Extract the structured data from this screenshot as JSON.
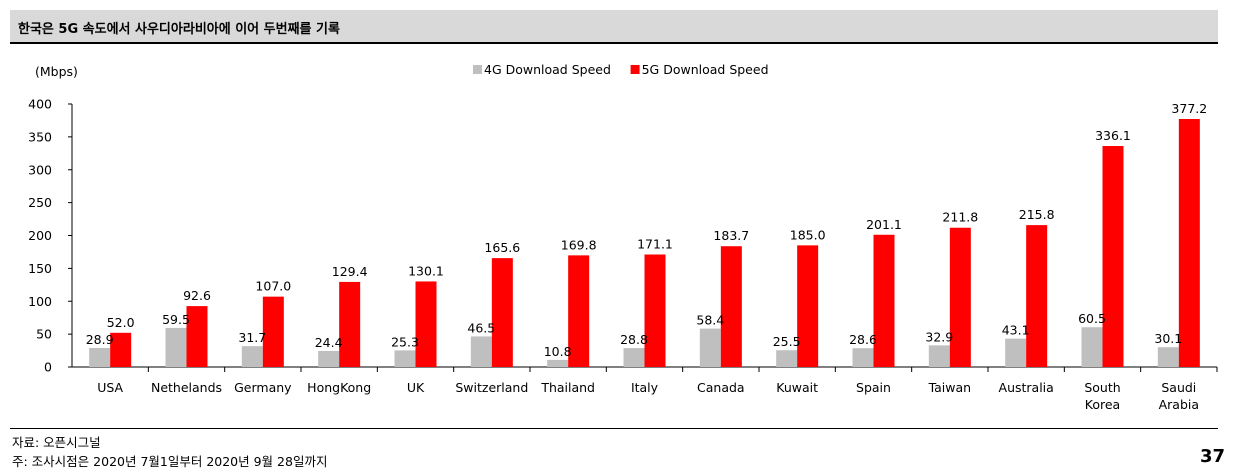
{
  "header": {
    "title": "한국은 5G 속도에서 사우디아라비아에 이어 두번째를 기록"
  },
  "chart_data": {
    "type": "bar",
    "ylabel": "(Mbps)",
    "ylim": [
      0,
      400
    ],
    "yticks": [
      0,
      50,
      100,
      150,
      200,
      250,
      300,
      350,
      400
    ],
    "legend_position": "top-center",
    "categories": [
      [
        "USA"
      ],
      [
        "Nethelands"
      ],
      [
        "Germany"
      ],
      [
        "HongKong"
      ],
      [
        "UK"
      ],
      [
        "Switzerland"
      ],
      [
        "Thailand"
      ],
      [
        "Italy"
      ],
      [
        "Canada"
      ],
      [
        "Kuwait"
      ],
      [
        "Spain"
      ],
      [
        "Taiwan"
      ],
      [
        "Australia"
      ],
      [
        "South",
        "Korea"
      ],
      [
        "Saudi",
        "Arabia"
      ]
    ],
    "series": [
      {
        "name": "4G Download Speed",
        "color": "#bfbfbf",
        "values": [
          28.9,
          59.5,
          31.7,
          24.4,
          25.3,
          46.5,
          10.8,
          28.8,
          58.4,
          25.5,
          28.6,
          32.9,
          43.1,
          60.5,
          30.1
        ]
      },
      {
        "name": "5G Download Speed",
        "color": "#ff0000",
        "values": [
          52.0,
          92.6,
          107.0,
          129.4,
          130.1,
          165.6,
          169.8,
          171.1,
          183.7,
          185.0,
          201.1,
          211.8,
          215.8,
          336.1,
          377.2
        ]
      }
    ]
  },
  "footer": {
    "source": "자료: 오픈시그널",
    "note": "주: 조사시점은 2020년 7월1일부터 2020년 9월 28일까지"
  },
  "page_number": "37"
}
